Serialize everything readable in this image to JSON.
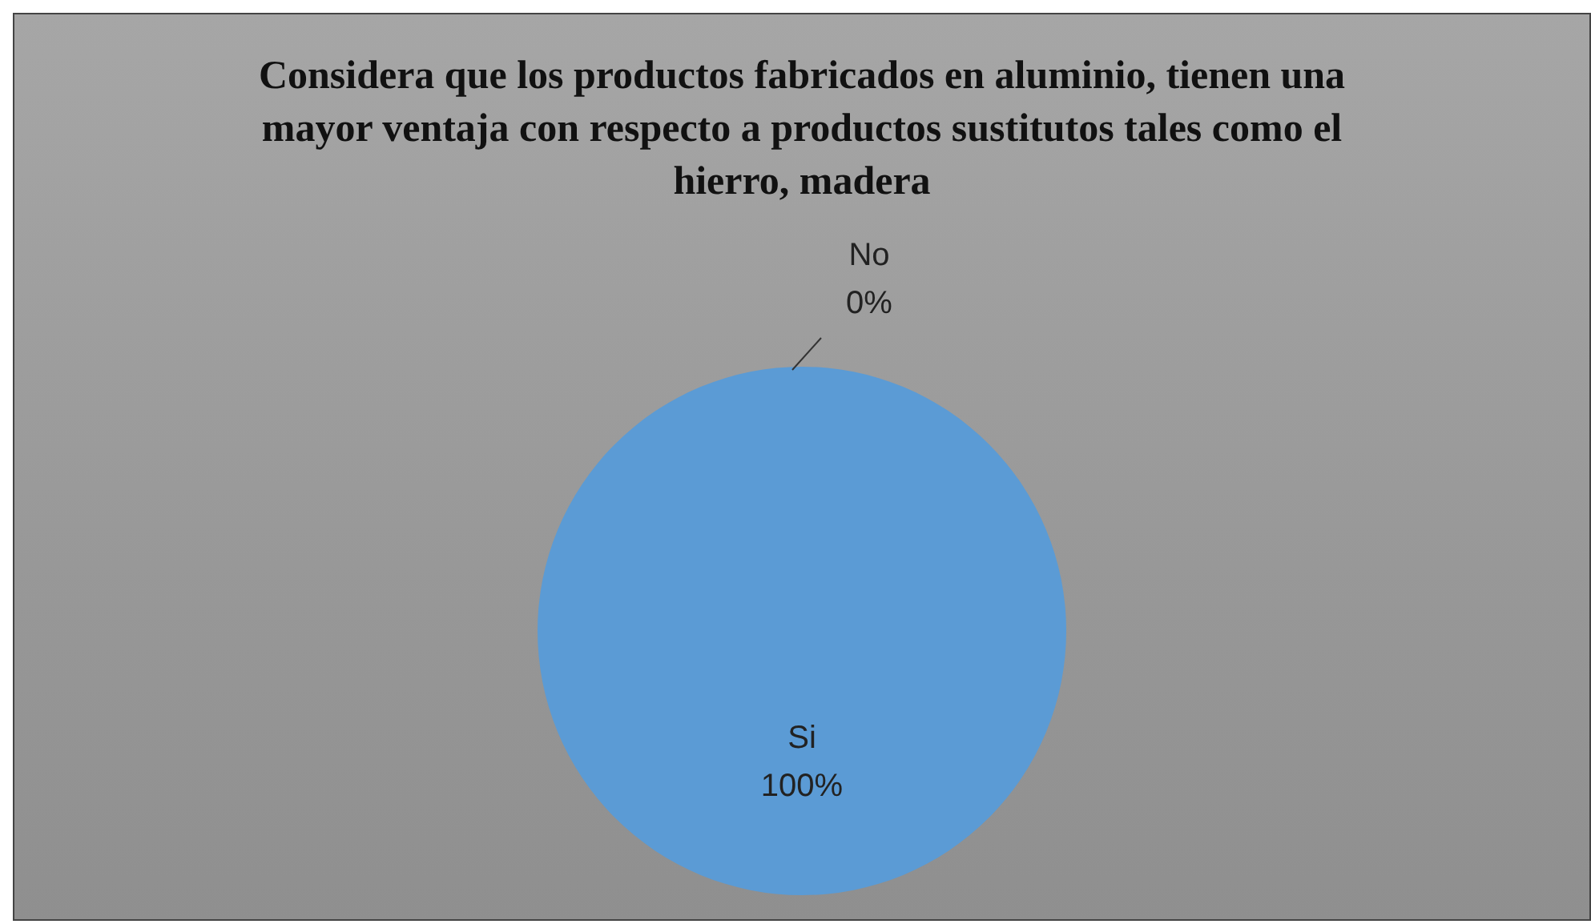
{
  "chart_data": {
    "type": "pie",
    "title": "Considera que los productos fabricados en aluminio, tienen una mayor ventaja con respecto a productos sustitutos tales como el hierro, madera",
    "categories": [
      "No",
      "Si"
    ],
    "values": [
      0,
      100
    ],
    "colors": [
      "#ed7d31",
      "#5b9bd5"
    ],
    "value_labels": [
      "0%",
      "100%"
    ],
    "legend": false
  }
}
